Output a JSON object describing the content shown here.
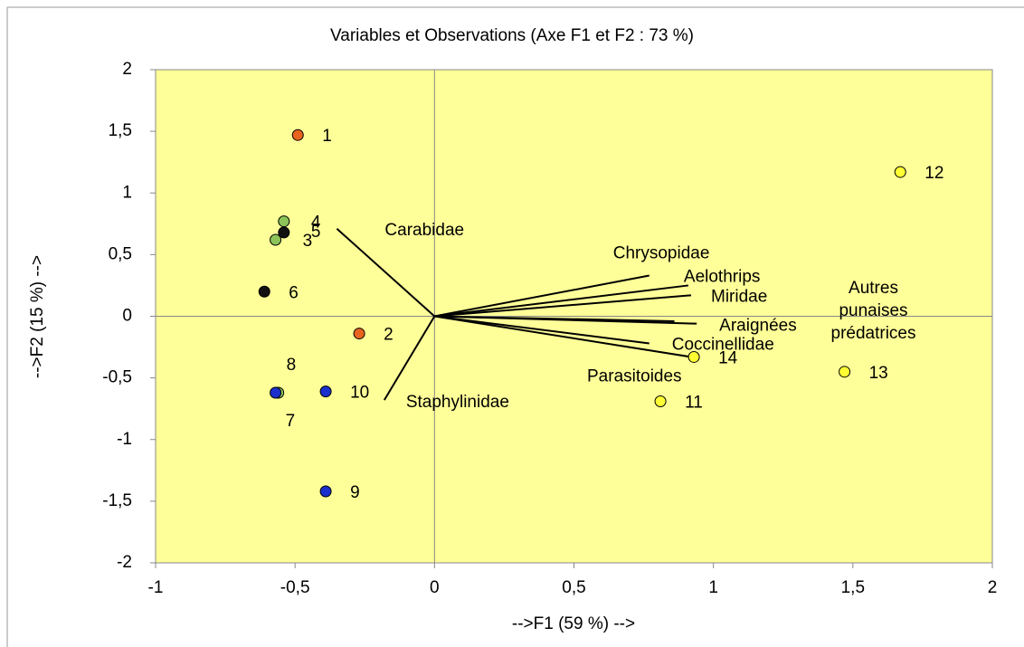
{
  "chart_data": {
    "type": "biplot",
    "title": "Variables et Observations (Axe F1 et F2 : 73 %)",
    "xlabel": "-->F1 (59 %) -->",
    "ylabel": "-->F2 (15 %) -->",
    "xlim": [
      -1,
      2
    ],
    "ylim": [
      -2,
      2
    ],
    "xticks": [
      -1,
      {
        "value": -0.5,
        "label": "-0,5"
      },
      0,
      {
        "value": 0.5,
        "label": "0,5"
      },
      1,
      {
        "value": 1.5,
        "label": "1,5"
      },
      2
    ],
    "yticks": [
      -2,
      {
        "value": -1.5,
        "label": "-1,5"
      },
      -1,
      {
        "value": -0.5,
        "label": "-0,5"
      },
      0,
      {
        "value": 0.5,
        "label": "0,5"
      },
      1,
      {
        "value": 1.5,
        "label": "1,5"
      },
      2
    ],
    "background": "#ffff99",
    "observations": {
      "labels": [
        "1",
        "2",
        "3",
        "4",
        "5",
        "6",
        "7",
        "8",
        "9",
        "10",
        "11",
        "12",
        "13",
        "14"
      ],
      "x": [
        -0.49,
        -0.27,
        -0.57,
        -0.54,
        -0.54,
        -0.61,
        -0.56,
        -0.57,
        -0.39,
        -0.39,
        0.81,
        1.67,
        1.47,
        0.93
      ],
      "y": [
        1.47,
        -0.14,
        0.62,
        0.77,
        0.68,
        0.2,
        -0.62,
        -0.62,
        -1.42,
        -0.61,
        -0.69,
        1.17,
        -0.45,
        -0.33
      ],
      "colors": [
        "#e8641e",
        "#e8641e",
        "#8cc45a",
        "#8cc45a",
        "#111111",
        "#111111",
        "#8cc45a",
        "#1a2fcc",
        "#1a2fcc",
        "#1a2fcc",
        "#ffff33",
        "#ffff33",
        "#ffff33",
        "#ffff33"
      ]
    },
    "variables": {
      "names": [
        "Carabidae",
        "Staphylinidae",
        "Chrysopidae",
        "Aelothrips",
        "Miridae",
        "Autres punaises prédatrices",
        "Araignées",
        "Coccinellidae",
        "Parasitoides"
      ],
      "x": [
        -0.35,
        -0.18,
        0.77,
        0.91,
        0.92,
        0.86,
        0.94,
        0.77,
        0.92
      ],
      "y": [
        0.71,
        -0.68,
        0.33,
        0.25,
        0.17,
        -0.04,
        -0.06,
        -0.22,
        -0.33
      ]
    }
  }
}
